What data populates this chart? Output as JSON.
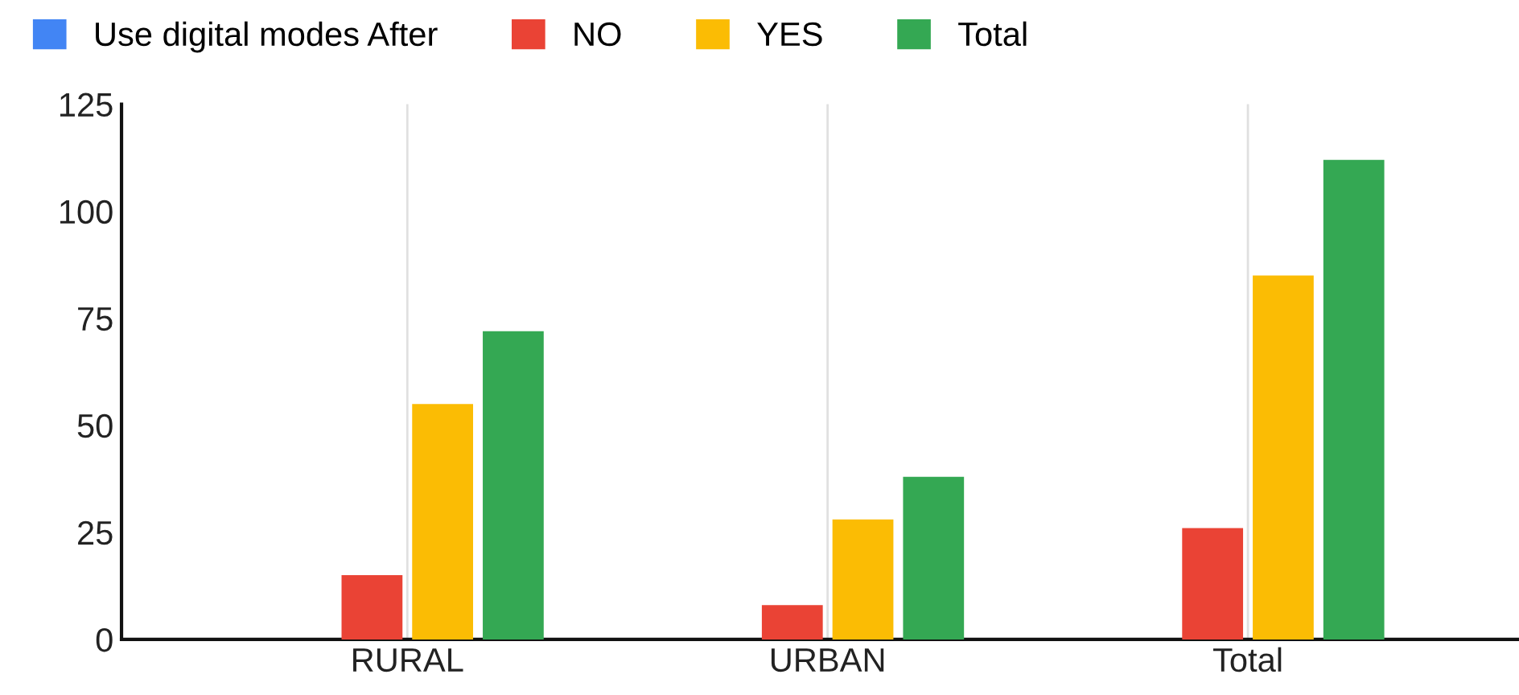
{
  "chart_data": {
    "type": "bar",
    "categories": [
      "RURAL",
      "URBAN",
      "Total"
    ],
    "series": [
      {
        "name": "Use digital modes After",
        "color": "#4285f4",
        "values": [
          0,
          null,
          0
        ]
      },
      {
        "name": "NO",
        "color": "#ea4335",
        "values": [
          15,
          8,
          26
        ]
      },
      {
        "name": "YES",
        "color": "#fbbc04",
        "values": [
          55,
          28,
          85
        ]
      },
      {
        "name": "Total",
        "color": "#34a853",
        "values": [
          72,
          38,
          112
        ]
      }
    ],
    "ylim": [
      0,
      125
    ],
    "yticks": [
      0,
      25,
      50,
      75,
      100,
      125
    ],
    "grid": "x",
    "legend": "top left"
  }
}
